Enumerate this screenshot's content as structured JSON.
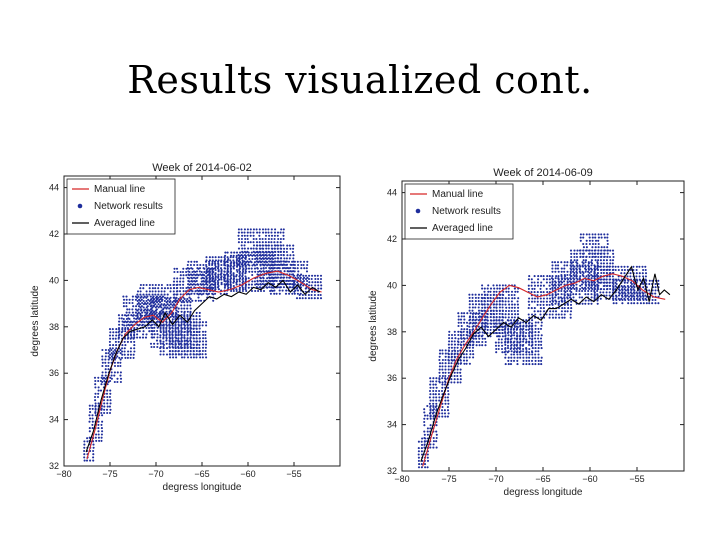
{
  "slide": {
    "title": "Results visualized cont."
  },
  "chart_data": [
    {
      "type": "scatter",
      "title": "Week of 2014-06-02",
      "xlabel": "degress longitude",
      "ylabel": "degrees latitude",
      "xlim": [
        -80,
        -50
      ],
      "ylim": [
        32,
        44.5
      ],
      "xticks": [
        -80,
        -75,
        -70,
        -65,
        -60,
        -55
      ],
      "yticks": [
        32,
        34,
        36,
        38,
        40,
        42,
        44
      ],
      "legend": [
        "Manual line",
        "Network results",
        "Averaged line"
      ],
      "legend_position": "top-left",
      "colors": {
        "manual": "#d62728",
        "network": "#1f2e9c",
        "averaged": "#000000"
      },
      "manual_line": [
        [
          -77.5,
          32.3
        ],
        [
          -76.6,
          33.6
        ],
        [
          -75.8,
          34.9
        ],
        [
          -75.0,
          36.1
        ],
        [
          -74.2,
          37.0
        ],
        [
          -73.3,
          37.7
        ],
        [
          -72.3,
          38.1
        ],
        [
          -71.3,
          38.4
        ],
        [
          -70.3,
          38.5
        ],
        [
          -69.3,
          38.2
        ],
        [
          -68.3,
          38.6
        ],
        [
          -67.4,
          39.2
        ],
        [
          -66.4,
          39.6
        ],
        [
          -65.4,
          39.7
        ],
        [
          -64.3,
          39.6
        ],
        [
          -63.2,
          39.5
        ],
        [
          -62.0,
          39.6
        ],
        [
          -60.7,
          39.8
        ],
        [
          -59.4,
          40.1
        ],
        [
          -58.1,
          40.3
        ],
        [
          -56.8,
          40.4
        ],
        [
          -55.5,
          40.2
        ],
        [
          -54.2,
          39.9
        ],
        [
          -53.0,
          39.6
        ],
        [
          -52.0,
          39.5
        ]
      ],
      "averaged_line": [
        [
          -77.6,
          32.6
        ],
        [
          -76.8,
          33.5
        ],
        [
          -76.0,
          34.8
        ],
        [
          -75.2,
          35.9
        ],
        [
          -74.4,
          36.8
        ],
        [
          -73.6,
          37.5
        ],
        [
          -72.8,
          37.8
        ],
        [
          -72.0,
          37.9
        ],
        [
          -71.2,
          38.0
        ],
        [
          -70.4,
          38.3
        ],
        [
          -69.7,
          38.0
        ],
        [
          -69.0,
          38.6
        ],
        [
          -68.2,
          38.1
        ],
        [
          -67.4,
          38.5
        ],
        [
          -66.6,
          38.2
        ],
        [
          -65.8,
          38.7
        ],
        [
          -65.0,
          39.0
        ],
        [
          -64.2,
          39.3
        ],
        [
          -63.4,
          39.2
        ],
        [
          -62.6,
          39.4
        ],
        [
          -61.8,
          39.3
        ],
        [
          -61.0,
          39.5
        ],
        [
          -60.2,
          39.4
        ],
        [
          -59.4,
          39.7
        ],
        [
          -58.6,
          39.6
        ],
        [
          -57.8,
          39.9
        ],
        [
          -57.0,
          39.7
        ],
        [
          -56.2,
          40.0
        ],
        [
          -55.4,
          39.5
        ],
        [
          -54.6,
          39.8
        ],
        [
          -53.8,
          39.4
        ],
        [
          -53.0,
          39.7
        ],
        [
          -52.2,
          39.5
        ]
      ],
      "network_bands": [
        [
          -77.8,
          -76.6,
          32.1,
          33.2
        ],
        [
          -77.2,
          -75.8,
          33.0,
          34.6
        ],
        [
          -76.6,
          -74.8,
          34.2,
          35.8
        ],
        [
          -75.8,
          -73.6,
          35.6,
          37.0
        ],
        [
          -75.0,
          -72.2,
          36.6,
          37.9
        ],
        [
          -74.0,
          -70.4,
          37.4,
          38.5
        ],
        [
          -73.5,
          -69.0,
          38.0,
          39.3
        ],
        [
          -72.0,
          -67.5,
          38.4,
          39.8
        ],
        [
          -70.5,
          -66.0,
          37.0,
          39.2
        ],
        [
          -69.5,
          -65.2,
          36.8,
          38.6
        ],
        [
          -68.5,
          -64.5,
          36.6,
          38.2
        ],
        [
          -68.0,
          -63.5,
          39.0,
          40.5
        ],
        [
          -66.5,
          -62.0,
          39.3,
          40.8
        ],
        [
          -64.5,
          -60.0,
          39.6,
          41.0
        ],
        [
          -62.5,
          -57.0,
          39.5,
          41.2
        ],
        [
          -61.0,
          -56.0,
          40.6,
          42.2
        ],
        [
          -59.0,
          -55.0,
          39.7,
          41.5
        ],
        [
          -57.5,
          -53.5,
          39.4,
          40.8
        ],
        [
          -55.0,
          -52.0,
          39.2,
          40.2
        ]
      ]
    },
    {
      "type": "scatter",
      "title": "Week of 2014-06-09",
      "xlabel": "degress longitude",
      "ylabel": "degrees latitude",
      "xlim": [
        -80,
        -50
      ],
      "ylim": [
        32,
        44.5
      ],
      "xticks": [
        -80,
        -75,
        -70,
        -65,
        -60,
        -55
      ],
      "yticks": [
        32,
        34,
        36,
        38,
        40,
        42,
        44
      ],
      "legend": [
        "Manual line",
        "Network results",
        "Averaged line"
      ],
      "legend_position": "top-left",
      "colors": {
        "manual": "#d62728",
        "network": "#1f2e9c",
        "averaged": "#000000"
      },
      "manual_line": [
        [
          -77.8,
          32.2
        ],
        [
          -76.8,
          33.6
        ],
        [
          -75.9,
          34.8
        ],
        [
          -75.0,
          36.0
        ],
        [
          -74.2,
          36.8
        ],
        [
          -73.2,
          37.5
        ],
        [
          -72.2,
          38.1
        ],
        [
          -71.3,
          38.7
        ],
        [
          -70.5,
          39.2
        ],
        [
          -69.6,
          39.7
        ],
        [
          -68.6,
          40.0
        ],
        [
          -67.6,
          39.9
        ],
        [
          -66.6,
          39.7
        ],
        [
          -65.6,
          39.5
        ],
        [
          -64.6,
          39.6
        ],
        [
          -63.6,
          39.8
        ],
        [
          -62.6,
          40.0
        ],
        [
          -61.6,
          40.1
        ],
        [
          -60.6,
          40.3
        ],
        [
          -59.6,
          40.2
        ],
        [
          -58.6,
          40.4
        ],
        [
          -57.6,
          40.5
        ],
        [
          -56.6,
          40.4
        ],
        [
          -55.5,
          40.2
        ],
        [
          -54.4,
          39.8
        ],
        [
          -53.2,
          39.5
        ],
        [
          -52.0,
          39.4
        ]
      ],
      "averaged_line": [
        [
          -78.0,
          32.4
        ],
        [
          -77.2,
          33.3
        ],
        [
          -76.4,
          34.4
        ],
        [
          -75.6,
          35.3
        ],
        [
          -74.8,
          36.1
        ],
        [
          -74.0,
          36.8
        ],
        [
          -73.2,
          37.3
        ],
        [
          -72.4,
          37.9
        ],
        [
          -71.6,
          38.2
        ],
        [
          -70.8,
          37.8
        ],
        [
          -70.0,
          38.1
        ],
        [
          -69.2,
          38.4
        ],
        [
          -68.4,
          38.2
        ],
        [
          -67.6,
          38.6
        ],
        [
          -66.8,
          38.4
        ],
        [
          -66.0,
          38.7
        ],
        [
          -65.2,
          38.5
        ],
        [
          -64.4,
          39.0
        ],
        [
          -63.6,
          39.0
        ],
        [
          -62.8,
          39.2
        ],
        [
          -62.0,
          39.4
        ],
        [
          -61.2,
          39.2
        ],
        [
          -60.4,
          39.5
        ],
        [
          -59.6,
          39.3
        ],
        [
          -58.8,
          39.6
        ],
        [
          -58.0,
          39.4
        ],
        [
          -57.2,
          39.8
        ],
        [
          -56.4,
          40.3
        ],
        [
          -55.6,
          40.8
        ],
        [
          -54.9,
          39.8
        ],
        [
          -54.3,
          40.3
        ],
        [
          -53.7,
          39.3
        ],
        [
          -53.1,
          40.5
        ],
        [
          -52.6,
          39.6
        ],
        [
          -52.1,
          39.8
        ],
        [
          -51.5,
          39.6
        ]
      ],
      "network_bands": [
        [
          -78.2,
          -77.0,
          32.1,
          33.4
        ],
        [
          -77.6,
          -76.2,
          33.0,
          34.8
        ],
        [
          -77.0,
          -75.0,
          34.3,
          36.0
        ],
        [
          -76.0,
          -73.6,
          35.7,
          37.2
        ],
        [
          -75.0,
          -72.4,
          36.6,
          38.0
        ],
        [
          -74.0,
          -71.0,
          37.3,
          38.8
        ],
        [
          -72.8,
          -69.2,
          37.8,
          39.6
        ],
        [
          -71.5,
          -67.5,
          38.2,
          40.0
        ],
        [
          -70.0,
          -66.0,
          37.0,
          38.5
        ],
        [
          -69.0,
          -65.0,
          36.6,
          38.4
        ],
        [
          -66.5,
          -62.0,
          38.6,
          40.4
        ],
        [
          -64.0,
          -59.0,
          39.2,
          41.0
        ],
        [
          -62.0,
          -57.5,
          39.8,
          41.5
        ],
        [
          -61.0,
          -58.0,
          41.2,
          42.2
        ],
        [
          -59.5,
          -54.0,
          39.4,
          40.8
        ],
        [
          -57.5,
          -52.5,
          39.2,
          40.2
        ]
      ]
    }
  ]
}
